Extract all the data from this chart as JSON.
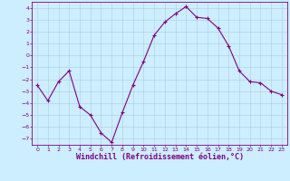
{
  "x": [
    0,
    1,
    2,
    3,
    4,
    5,
    6,
    7,
    8,
    9,
    10,
    11,
    12,
    13,
    14,
    15,
    16,
    17,
    18,
    19,
    20,
    21,
    22,
    23
  ],
  "y": [
    -2.5,
    -3.8,
    -2.2,
    -1.3,
    -4.3,
    -5.0,
    -6.5,
    -7.3,
    -4.8,
    -2.5,
    -0.5,
    1.7,
    2.8,
    3.5,
    4.1,
    3.2,
    3.1,
    2.3,
    0.8,
    -1.3,
    -2.2,
    -2.3,
    -3.0,
    -3.3
  ],
  "line_color": "#800080",
  "marker": "+",
  "marker_size": 3.0,
  "bg_color": "#cceeff",
  "grid_color": "#aaccdd",
  "axis_color": "#800080",
  "xlabel": "Windchill (Refroidissement éolien,°C)",
  "ylim": [
    -7.5,
    4.5
  ],
  "xlim": [
    -0.5,
    23.5
  ],
  "yticks": [
    -7,
    -6,
    -5,
    -4,
    -3,
    -2,
    -1,
    0,
    1,
    2,
    3,
    4
  ],
  "xticks": [
    0,
    1,
    2,
    3,
    4,
    5,
    6,
    7,
    8,
    9,
    10,
    11,
    12,
    13,
    14,
    15,
    16,
    17,
    18,
    19,
    20,
    21,
    22,
    23
  ],
  "tick_fontsize": 4.5,
  "xlabel_fontsize": 6.0
}
